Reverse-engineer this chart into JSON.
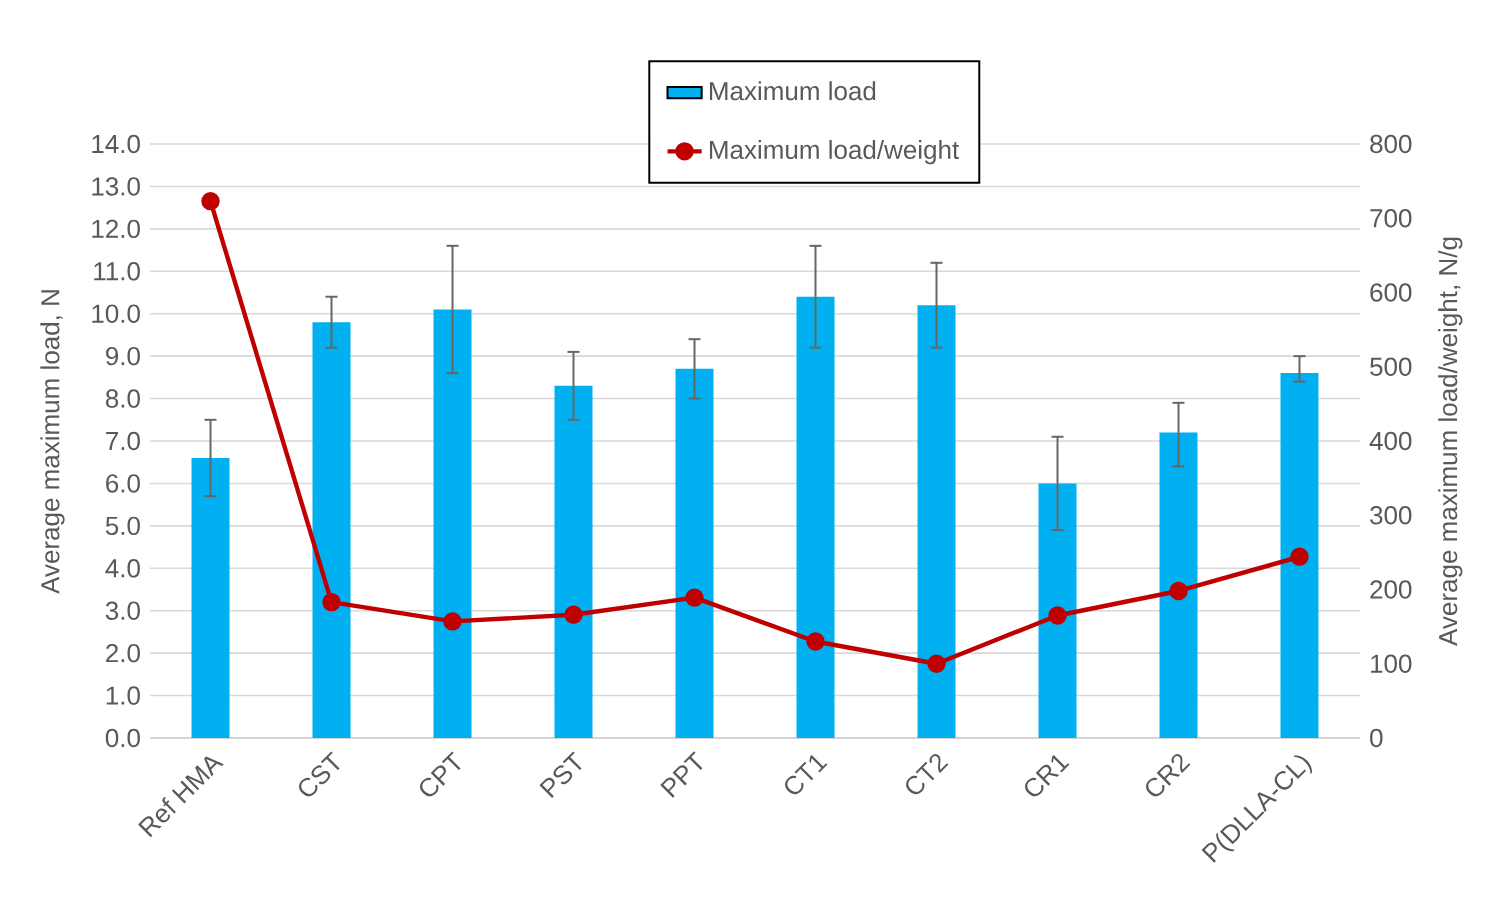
{
  "chart_data": {
    "type": "bar",
    "categories": [
      "Ref HMA",
      "CST",
      "CPT",
      "PST",
      "PPT",
      "CT1",
      "CT2",
      "CR1",
      "CR2",
      "P(DLLA-CL)"
    ],
    "series": [
      {
        "name": "Maximum load",
        "color": "#00b0f0",
        "values": [
          6.6,
          9.8,
          10.1,
          8.3,
          8.7,
          10.4,
          10.2,
          6.0,
          7.2,
          8.6
        ],
        "errors": [
          [
            5.7,
            7.5
          ],
          [
            9.2,
            10.4
          ],
          [
            8.6,
            11.6
          ],
          [
            7.5,
            9.1
          ],
          [
            8.0,
            9.4
          ],
          [
            9.2,
            11.6
          ],
          [
            9.2,
            11.2
          ],
          [
            4.9,
            7.1
          ],
          [
            6.4,
            7.9
          ],
          [
            8.4,
            9.0
          ]
        ]
      },
      {
        "name": "Maximum load/weight",
        "type": "line",
        "axis": "y2",
        "color": "#c00000",
        "marker": "circle",
        "line_style": "solid",
        "values": [
          723,
          183,
          157,
          166,
          189,
          130,
          100,
          165,
          198,
          244
        ]
      }
    ],
    "ylabel": "Average maximum load, N",
    "y2label": "Average maximum load/weight, N/g",
    "ylim": [
      0,
      14
    ],
    "yticks": [
      {
        "value": 0,
        "label": "0.0"
      },
      {
        "value": 1,
        "label": "1.0"
      },
      {
        "value": 2,
        "label": "2.0"
      },
      {
        "value": 3,
        "label": "3.0"
      },
      {
        "value": 4,
        "label": "4.0"
      },
      {
        "value": 5,
        "label": "5.0"
      },
      {
        "value": 6,
        "label": "6.0"
      },
      {
        "value": 7,
        "label": "7.0"
      },
      {
        "value": 8,
        "label": "8.0"
      },
      {
        "value": 9,
        "label": "9.0"
      },
      {
        "value": 10,
        "label": "10.0"
      },
      {
        "value": 11,
        "label": "11.0"
      },
      {
        "value": 12,
        "label": "12.0"
      },
      {
        "value": 13,
        "label": "13.0"
      },
      {
        "value": 14,
        "label": "14.0"
      }
    ],
    "y2lim": [
      0,
      800
    ],
    "y2ticks": [
      0,
      100,
      200,
      300,
      400,
      500,
      600,
      700,
      800
    ],
    "grid": "y",
    "legend": "top"
  }
}
